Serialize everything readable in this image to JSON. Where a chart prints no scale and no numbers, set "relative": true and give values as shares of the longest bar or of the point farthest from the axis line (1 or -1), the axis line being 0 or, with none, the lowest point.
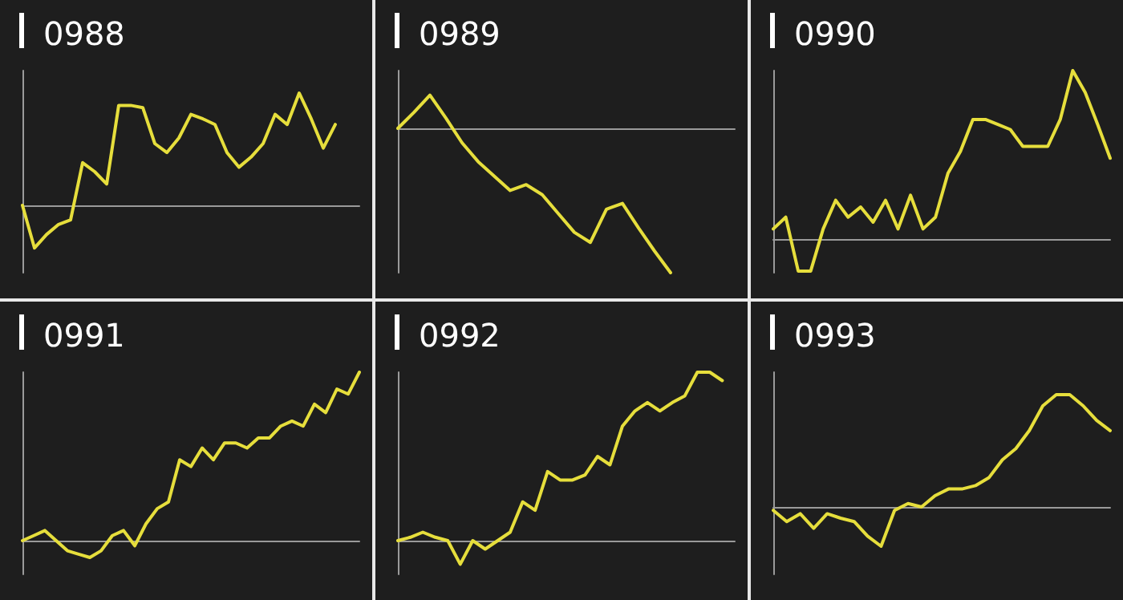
{
  "chart_data": [
    {
      "type": "line",
      "title": "0988",
      "relative": true,
      "marker": "none",
      "color": "#e6de3c",
      "categories": [
        null,
        null,
        null,
        null,
        null,
        null,
        null,
        null,
        null,
        null,
        null,
        null,
        null,
        null,
        null,
        null,
        null,
        null,
        null,
        null,
        null,
        null,
        null,
        null,
        null,
        null,
        null,
        null,
        null
      ],
      "values": [
        0,
        -0.38,
        -0.26,
        -0.17,
        -0.13,
        0.38,
        0.3,
        0.19,
        0.89,
        0.89,
        0.87,
        0.55,
        0.47,
        0.6,
        0.81,
        0.77,
        0.72,
        0.47,
        0.34,
        0.43,
        0.55,
        0.81,
        0.72,
        1,
        0.77,
        0.51,
        0.72,
        null,
        null
      ]
    },
    {
      "type": "line",
      "title": "0989",
      "relative": true,
      "marker": "none",
      "color": "#e6de3c",
      "categories": [
        null,
        null,
        null,
        null,
        null,
        null,
        null,
        null,
        null,
        null,
        null,
        null,
        null,
        null,
        null,
        null,
        null,
        null,
        null,
        null,
        null,
        null
      ],
      "values": [
        0,
        0.11,
        0.23,
        0.07,
        -0.1,
        -0.23,
        -0.33,
        -0.43,
        -0.39,
        -0.46,
        -0.59,
        -0.72,
        -0.79,
        -0.56,
        -0.52,
        -0.69,
        -0.85,
        -1,
        null,
        null,
        null,
        null
      ]
    },
    {
      "type": "line",
      "title": "0990",
      "relative": true,
      "marker": "none",
      "color": "#e6de3c",
      "categories": [
        null,
        null,
        null,
        null,
        null,
        null,
        null,
        null,
        null,
        null,
        null,
        null,
        null,
        null,
        null,
        null,
        null,
        null,
        null,
        null,
        null,
        null,
        null,
        null,
        null,
        null,
        null,
        null
      ],
      "values": [
        0.06,
        0.13,
        -0.19,
        -0.19,
        0.06,
        0.23,
        0.13,
        0.19,
        0.1,
        0.23,
        0.06,
        0.26,
        0.06,
        0.13,
        0.39,
        0.52,
        0.71,
        0.71,
        0.68,
        0.65,
        0.55,
        0.55,
        0.55,
        0.71,
        1,
        0.87,
        0.68,
        0.48
      ]
    },
    {
      "type": "line",
      "title": "0991",
      "relative": true,
      "marker": "none",
      "color": "#e6de3c",
      "categories": [
        null,
        null,
        null,
        null,
        null,
        null,
        null,
        null,
        null,
        null,
        null,
        null,
        null,
        null,
        null,
        null,
        null,
        null,
        null,
        null,
        null,
        null,
        null,
        null,
        null,
        null,
        null,
        null,
        null,
        null,
        null
      ],
      "values": [
        0,
        0.03,
        0.06,
        0,
        -0.06,
        -0.08,
        -0.1,
        -0.06,
        0.03,
        0.06,
        -0.03,
        0.1,
        0.19,
        0.23,
        0.48,
        0.44,
        0.55,
        0.48,
        0.58,
        0.58,
        0.55,
        0.61,
        0.61,
        0.68,
        0.71,
        0.68,
        0.81,
        0.76,
        0.9,
        0.87,
        1
      ]
    },
    {
      "type": "line",
      "title": "0992",
      "relative": true,
      "marker": "none",
      "color": "#e6de3c",
      "categories": [
        null,
        null,
        null,
        null,
        null,
        null,
        null,
        null,
        null,
        null,
        null,
        null,
        null,
        null,
        null,
        null,
        null,
        null,
        null,
        null,
        null,
        null,
        null,
        null,
        null,
        null,
        null,
        null
      ],
      "values": [
        0,
        0.02,
        0.05,
        0.02,
        0,
        -0.14,
        0,
        -0.05,
        0,
        0.05,
        0.23,
        0.18,
        0.41,
        0.36,
        0.36,
        0.39,
        0.5,
        0.45,
        0.68,
        0.77,
        0.82,
        0.77,
        0.82,
        0.86,
        1,
        1,
        0.95,
        null
      ]
    },
    {
      "type": "line",
      "title": "0993",
      "relative": true,
      "marker": "none",
      "color": "#e6de3c",
      "categories": [
        null,
        null,
        null,
        null,
        null,
        null,
        null,
        null,
        null,
        null,
        null,
        null,
        null,
        null,
        null,
        null,
        null,
        null,
        null,
        null,
        null,
        null,
        null,
        null,
        null,
        null
      ],
      "values": [
        -0.03,
        -0.13,
        -0.06,
        -0.19,
        -0.06,
        -0.1,
        -0.13,
        -0.26,
        -0.35,
        -0.03,
        0.03,
        0,
        0.1,
        0.16,
        0.16,
        0.19,
        0.26,
        0.42,
        0.52,
        0.68,
        0.9,
        1,
        1,
        0.9,
        0.77,
        0.68
      ]
    }
  ]
}
